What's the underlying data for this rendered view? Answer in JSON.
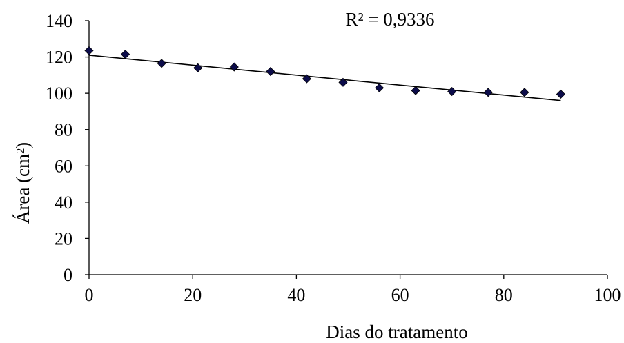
{
  "chart_data": {
    "type": "scatter",
    "title": "",
    "xlabel": "Dias do tratamento",
    "ylabel": "Área (cm²)",
    "xlim": [
      0,
      100
    ],
    "ylim": [
      0,
      140
    ],
    "x_ticks": [
      0,
      20,
      40,
      60,
      80,
      100
    ],
    "y_ticks": [
      0,
      20,
      40,
      60,
      80,
      100,
      120,
      140
    ],
    "x_tick_labels": [
      "0",
      "20",
      "40",
      "60",
      "80",
      "100"
    ],
    "y_tick_labels": [
      "0",
      "20",
      "40",
      "60",
      "80",
      "100",
      "120",
      "140"
    ],
    "grid": false,
    "legend": "none",
    "series": [
      {
        "x": [
          0,
          7,
          14,
          21,
          28,
          35,
          42,
          49,
          56,
          63,
          70,
          77,
          84,
          91
        ],
        "y": [
          123.5,
          121.5,
          116.5,
          114,
          114.5,
          112,
          108,
          106,
          103,
          101.5,
          101,
          100.5,
          100.5,
          99.5
        ],
        "marker": "diamond",
        "color": "#0c0c4a"
      }
    ],
    "trendline": {
      "type": "linear",
      "x": [
        0,
        91
      ],
      "y": [
        121,
        96
      ],
      "color": "#000000"
    },
    "annotation": "R² = 0,9336"
  }
}
